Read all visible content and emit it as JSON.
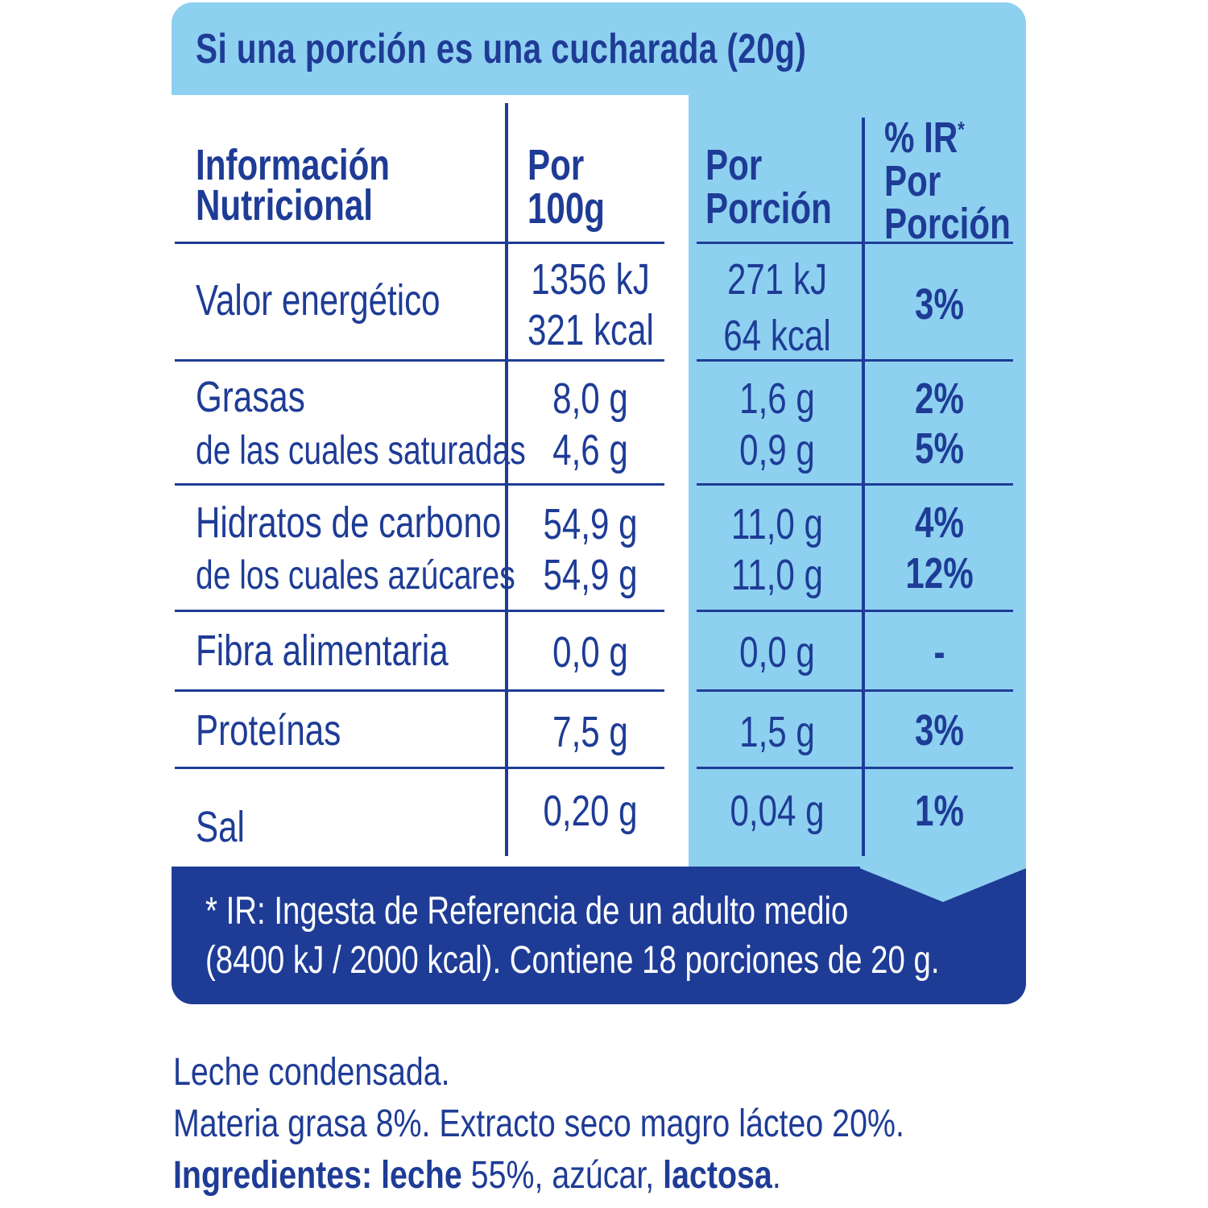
{
  "header": "Si una porción es una cucharada (20g)",
  "columns": {
    "info_line1": "Información",
    "info_line2": "Nutricional",
    "per100_line1": "Por",
    "per100_line2": "100g",
    "portion_line1": "Por",
    "portion_line2": "Porción",
    "ir_line1": "% IR",
    "ir_star": "*",
    "ir_line2": "Por",
    "ir_line3": "Porción"
  },
  "rows": {
    "energy": {
      "label": "Valor energético",
      "per100_kj": "1356 kJ",
      "per100_kcal": "321 kcal",
      "portion_kj": "271 kJ",
      "portion_kcal": "64 kcal",
      "ir": "3%"
    },
    "fat": {
      "label": "Grasas",
      "per100": "8,0 g",
      "portion": "1,6 g",
      "ir": "2%"
    },
    "saturated": {
      "label": "de las cuales saturadas",
      "per100": "4,6 g",
      "portion": "0,9 g",
      "ir": "5%"
    },
    "carbs": {
      "label": "Hidratos de carbono",
      "per100": "54,9 g",
      "portion": "11,0 g",
      "ir": "4%"
    },
    "sugars": {
      "label": "de los cuales azúcares",
      "per100": "54,9 g",
      "portion": "11,0 g",
      "ir": "12%"
    },
    "fiber": {
      "label": "Fibra alimentaria",
      "per100": "0,0 g",
      "portion": "0,0 g",
      "ir": "-"
    },
    "protein": {
      "label": "Proteínas",
      "per100": "7,5 g",
      "portion": "1,5 g",
      "ir": "3%"
    },
    "salt": {
      "label": "Sal",
      "per100": "0,20 g",
      "portion": "0,04 g",
      "ir": "1%"
    }
  },
  "footnote_line1": "* IR: Ingesta de Referencia de un adulto medio",
  "footnote_line2": "(8400 kJ / 2000 kcal). Contiene 18 porciones de 20 g.",
  "product": {
    "line1": "Leche condensada.",
    "line2": "Materia grasa 8%. Extracto seco magro lácteo 20%.",
    "ingredients_label": "Ingredientes:",
    "ing1": "leche",
    "ing1_pct": "55%, azúcar,",
    "ing2": "lactosa",
    "end": "."
  },
  "colors": {
    "dark_blue": "#1e3c96",
    "light_blue": "#8ed0f0",
    "white": "#ffffff"
  }
}
